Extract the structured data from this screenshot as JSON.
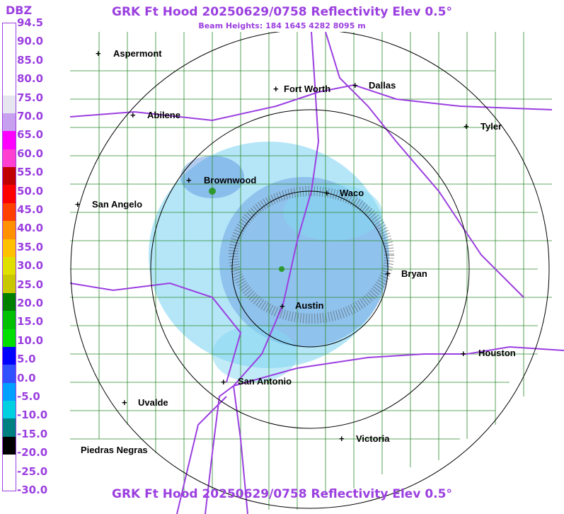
{
  "header": {
    "title": "GRK Ft Hood 20250629/0758 Reflectivity Elev 0.5°",
    "subtitle": "Beam Heights: 184 1645 4282 8095 m"
  },
  "footer": {
    "title": "GRK Ft Hood 20250629/0758 Reflectivity Elev 0.5°"
  },
  "legend": {
    "unit": "DBZ",
    "ticks": [
      "94.5",
      "90.0",
      "85.0",
      "80.0",
      "75.0",
      "70.0",
      "65.0",
      "60.0",
      "55.0",
      "50.0",
      "45.0",
      "40.0",
      "35.0",
      "30.0",
      "25.0",
      "20.0",
      "15.0",
      "10.0",
      "5.0",
      "0.0",
      "-5.0",
      "-10.0",
      "-15.0",
      "-20.0",
      "-25.0",
      "-30.0"
    ],
    "colors": [
      "#ffffff",
      "#ffffff",
      "#ffffff",
      "#ffffff",
      "#e6e6f0",
      "#c8a0f0",
      "#ff00ff",
      "#ff40d0",
      "#c00000",
      "#ff0000",
      "#ff4000",
      "#ff9000",
      "#ffc000",
      "#e0e000",
      "#c8c800",
      "#008000",
      "#00c000",
      "#00e000",
      "#0000ff",
      "#3050ff",
      "#00a0ff",
      "#00d0e0",
      "#008080",
      "#000000",
      "#ffffff",
      "#ffffff"
    ]
  },
  "map": {
    "cities": [
      {
        "name": "Aspermont"
      },
      {
        "name": "Fort Worth"
      },
      {
        "name": "Dallas"
      },
      {
        "name": "Abilene"
      },
      {
        "name": "Tyler"
      },
      {
        "name": "Brownwood"
      },
      {
        "name": "Waco"
      },
      {
        "name": "San Angelo"
      },
      {
        "name": "Bryan"
      },
      {
        "name": "Austin"
      },
      {
        "name": "Houston"
      },
      {
        "name": "San Antonio"
      },
      {
        "name": "Uvalde"
      },
      {
        "name": "Victoria"
      },
      {
        "name": "Piedras Negras"
      }
    ],
    "colors": {
      "county_lines": "#2e8b2e",
      "highways": "#9b3fe0",
      "range_rings": "#000000",
      "title": "#9b3fe0"
    }
  }
}
